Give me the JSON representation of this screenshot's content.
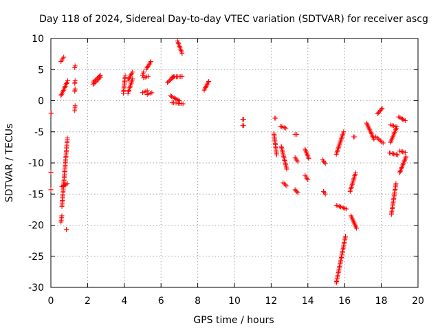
{
  "chart_data": {
    "type": "scatter",
    "title": "Day 118 of 2024, Sidereal Day-to-day VTEC variation (SDTVAR) for receiver ascg",
    "xlabel": "GPS time / hours",
    "ylabel": "SDTVAR / TECUs",
    "xlim": [
      0,
      20
    ],
    "ylim": [
      -30,
      10
    ],
    "grid": true,
    "marker": "+",
    "color": "#ff0000",
    "xticks": [
      "0",
      "2",
      "4",
      "6",
      "8",
      "10",
      "12",
      "14",
      "16",
      "18",
      "20"
    ],
    "yticks": [
      "-30",
      "-25",
      "-20",
      "-15",
      "-10",
      "-5",
      "0",
      "5",
      "10"
    ],
    "series": [
      {
        "name": "ascg",
        "segments": [
          {
            "x": [
              0.0,
              0.02
            ],
            "y": [
              -2.0,
              -2.0
            ]
          },
          {
            "x": [
              0.0,
              0.0
            ],
            "y": [
              -11.5,
              -11.5
            ]
          },
          {
            "x": [
              0.0,
              0.0
            ],
            "y": [
              -14.3,
              -14.3
            ]
          },
          {
            "x": [
              0.55,
              0.7
            ],
            "y": [
              6.3,
              7.0
            ]
          },
          {
            "x": [
              0.55,
              0.92
            ],
            "y": [
              0.8,
              3.2
            ]
          },
          {
            "x": [
              0.55,
              0.6
            ],
            "y": [
              -19.5,
              -18.5
            ]
          },
          {
            "x": [
              0.6,
              0.9
            ],
            "y": [
              -17.0,
              -6.0
            ]
          },
          {
            "x": [
              0.6,
              0.9
            ],
            "y": [
              -13.8,
              -13.3
            ]
          },
          {
            "x": [
              0.85,
              0.85
            ],
            "y": [
              -20.7,
              -20.7
            ]
          },
          {
            "x": [
              1.3,
              1.32
            ],
            "y": [
              5.3,
              5.6
            ]
          },
          {
            "x": [
              1.3,
              1.32
            ],
            "y": [
              2.8,
              3.2
            ]
          },
          {
            "x": [
              1.3,
              1.32
            ],
            "y": [
              1.5,
              1.9
            ]
          },
          {
            "x": [
              1.3,
              1.32
            ],
            "y": [
              -1.6,
              -0.8
            ]
          },
          {
            "x": [
              2.3,
              2.7
            ],
            "y": [
              2.6,
              3.8
            ]
          },
          {
            "x": [
              2.3,
              2.7
            ],
            "y": [
              3.0,
              4.1
            ]
          },
          {
            "x": [
              3.95,
              4.05
            ],
            "y": [
              1.2,
              4.0
            ]
          },
          {
            "x": [
              4.2,
              4.45
            ],
            "y": [
              1.2,
              3.5
            ]
          },
          {
            "x": [
              4.2,
              4.45
            ],
            "y": [
              3.3,
              4.6
            ]
          },
          {
            "x": [
              5.0,
              5.05
            ],
            "y": [
              4.1,
              4.6
            ]
          },
          {
            "x": [
              5.0,
              5.25
            ],
            "y": [
              1.3,
              1.6
            ]
          },
          {
            "x": [
              5.05,
              5.3
            ],
            "y": [
              3.7,
              3.9
            ]
          },
          {
            "x": [
              5.2,
              5.45
            ],
            "y": [
              5.1,
              6.3
            ]
          },
          {
            "x": [
              5.25,
              5.5
            ],
            "y": [
              1.0,
              1.3
            ]
          },
          {
            "x": [
              6.35,
              6.7
            ],
            "y": [
              2.9,
              3.9
            ]
          },
          {
            "x": [
              6.5,
              7.0
            ],
            "y": [
              0.8,
              0.0
            ]
          },
          {
            "x": [
              6.6,
              7.2
            ],
            "y": [
              -0.3,
              -0.5
            ]
          },
          {
            "x": [
              6.6,
              7.15
            ],
            "y": [
              3.8,
              3.9
            ]
          },
          {
            "x": [
              6.9,
              7.15
            ],
            "y": [
              9.6,
              7.6
            ]
          },
          {
            "x": [
              8.35,
              8.6
            ],
            "y": [
              1.7,
              3.1
            ]
          },
          {
            "x": [
              10.45,
              10.5
            ],
            "y": [
              -3.0,
              -3.0
            ]
          },
          {
            "x": [
              10.45,
              10.5
            ],
            "y": [
              -4.0,
              -4.0
            ]
          },
          {
            "x": [
              12.2,
              12.25
            ],
            "y": [
              -2.8,
              -2.8
            ]
          },
          {
            "x": [
              12.15,
              12.3
            ],
            "y": [
              -5.2,
              -8.7
            ]
          },
          {
            "x": [
              12.5,
              12.8
            ],
            "y": [
              -4.1,
              -4.4
            ]
          },
          {
            "x": [
              12.55,
              12.85
            ],
            "y": [
              -7.3,
              -11.0
            ]
          },
          {
            "x": [
              12.65,
              12.85
            ],
            "y": [
              -13.2,
              -13.7
            ]
          },
          {
            "x": [
              13.3,
              13.4
            ],
            "y": [
              -5.4,
              -5.4
            ]
          },
          {
            "x": [
              13.3,
              13.45
            ],
            "y": [
              -9.1,
              -9.8
            ]
          },
          {
            "x": [
              13.3,
              13.45
            ],
            "y": [
              -14.3,
              -14.8
            ]
          },
          {
            "x": [
              13.85,
              14.0
            ],
            "y": [
              -12.0,
              -12.7
            ]
          },
          {
            "x": [
              13.85,
              14.05
            ],
            "y": [
              -7.8,
              -9.3
            ]
          },
          {
            "x": [
              14.8,
              14.95
            ],
            "y": [
              -9.5,
              -10.1
            ]
          },
          {
            "x": [
              14.85,
              14.95
            ],
            "y": [
              -14.6,
              -15.0
            ]
          },
          {
            "x": [
              15.55,
              15.95
            ],
            "y": [
              -8.6,
              -5.0
            ]
          },
          {
            "x": [
              15.55,
              16.1
            ],
            "y": [
              -16.8,
              -17.4
            ]
          },
          {
            "x": [
              15.55,
              16.05
            ],
            "y": [
              -29.3,
              -21.8
            ]
          },
          {
            "x": [
              16.3,
              16.6
            ],
            "y": [
              -14.6,
              -11.6
            ]
          },
          {
            "x": [
              16.35,
              16.65
            ],
            "y": [
              -18.5,
              -20.5
            ]
          },
          {
            "x": [
              16.5,
              16.55
            ],
            "y": [
              -5.8,
              -5.8
            ]
          },
          {
            "x": [
              17.2,
              17.6
            ],
            "y": [
              -3.6,
              -6.2
            ]
          },
          {
            "x": [
              17.7,
              18.1
            ],
            "y": [
              -5.8,
              -6.8
            ]
          },
          {
            "x": [
              17.8,
              18.05
            ],
            "y": [
              -2.1,
              -1.2
            ]
          },
          {
            "x": [
              18.45,
              18.9
            ],
            "y": [
              -8.4,
              -8.7
            ]
          },
          {
            "x": [
              18.5,
              18.85
            ],
            "y": [
              -6.7,
              -4.2
            ]
          },
          {
            "x": [
              18.5,
              18.85
            ],
            "y": [
              -3.9,
              -4.2
            ]
          },
          {
            "x": [
              18.55,
              18.8
            ],
            "y": [
              -18.3,
              -13.3
            ]
          },
          {
            "x": [
              18.95,
              19.3
            ],
            "y": [
              -2.6,
              -3.2
            ]
          },
          {
            "x": [
              19.0,
              19.35
            ],
            "y": [
              -11.6,
              -9.0
            ]
          },
          {
            "x": [
              19.0,
              19.3
            ],
            "y": [
              -8.1,
              -8.3
            ]
          }
        ]
      }
    ]
  }
}
